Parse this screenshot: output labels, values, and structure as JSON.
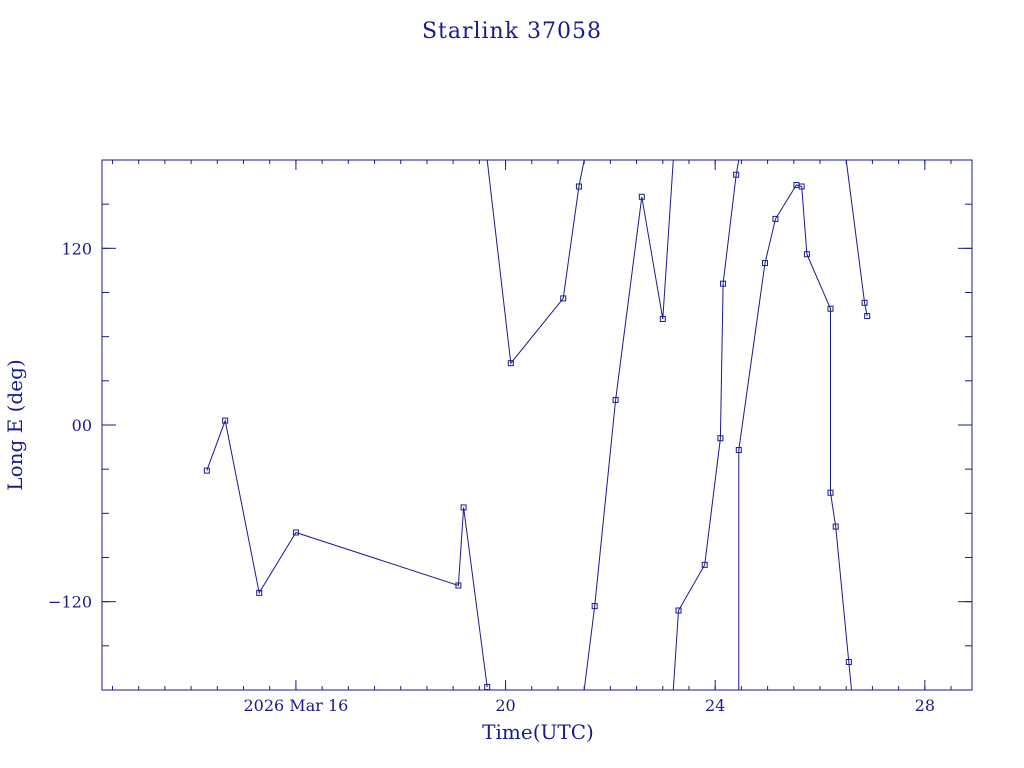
{
  "chart_data": {
    "type": "line",
    "title": "Starlink 37058",
    "xlabel": "Time(UTC)",
    "ylabel": "Long E (deg)",
    "x_unit": "days of March 2026 (UTC)",
    "xlim": [
      12.3,
      28.9
    ],
    "ylim": [
      -180,
      180
    ],
    "x_ticks": [
      {
        "value": 16,
        "label": "2026 Mar 16"
      },
      {
        "value": 20,
        "label": "20"
      },
      {
        "value": 24,
        "label": "24"
      },
      {
        "value": 28,
        "label": "28"
      }
    ],
    "y_ticks": [
      {
        "value": 120,
        "label": "120"
      },
      {
        "value": 0,
        "label": "00"
      },
      {
        "value": -120,
        "label": "−120"
      }
    ],
    "minor_x_step": 0.5,
    "minor_y_step": 30,
    "marker": "square",
    "color": "#1a1a8c",
    "series": [
      {
        "points": [
          [
            14.3,
            -31
          ],
          [
            14.65,
            3
          ],
          [
            15.3,
            -114
          ],
          [
            16.0,
            -73
          ],
          [
            19.1,
            -109
          ],
          [
            19.2,
            -56
          ],
          [
            19.65,
            -178
          ]
        ]
      },
      {
        "points": [
          [
            19.65,
            180
          ],
          [
            20.1,
            42
          ],
          [
            21.1,
            86
          ],
          [
            21.4,
            162
          ],
          [
            21.5,
            180
          ]
        ]
      },
      {
        "points": [
          [
            21.5,
            -180
          ],
          [
            21.7,
            -123
          ],
          [
            22.1,
            17
          ],
          [
            22.6,
            155
          ],
          [
            23.0,
            72
          ],
          [
            23.2,
            180
          ]
        ]
      },
      {
        "points": [
          [
            23.2,
            -180
          ],
          [
            23.3,
            -126
          ],
          [
            23.8,
            -95
          ],
          [
            24.1,
            -9
          ],
          [
            24.15,
            96
          ],
          [
            24.4,
            170
          ],
          [
            24.45,
            180
          ]
        ]
      },
      {
        "points": [
          [
            24.45,
            -180
          ],
          [
            24.45,
            -17
          ],
          [
            24.95,
            110
          ],
          [
            25.15,
            140
          ],
          [
            25.55,
            163
          ],
          [
            25.65,
            162
          ],
          [
            25.75,
            116
          ],
          [
            26.2,
            79
          ],
          [
            26.2,
            -46
          ],
          [
            26.3,
            -69
          ],
          [
            26.55,
            -161
          ],
          [
            26.6,
            -180
          ]
        ]
      },
      {
        "points": [
          [
            26.5,
            180
          ],
          [
            26.85,
            83
          ],
          [
            26.9,
            74
          ]
        ]
      }
    ]
  }
}
